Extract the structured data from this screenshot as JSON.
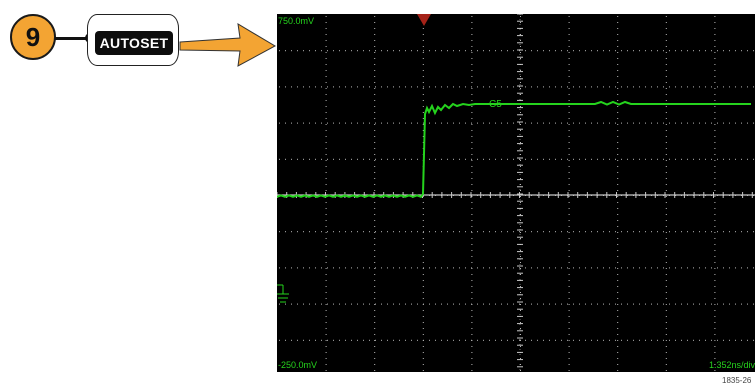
{
  "step": {
    "number": "9"
  },
  "button": {
    "label": "AUTOSET"
  },
  "scope": {
    "top_level": "750.0mV",
    "bottom_level": "-250.0mV",
    "timebase": "1.352ns/div",
    "channel": "C5",
    "trace_color": "#25d31d"
  },
  "figure_id": "1835-26",
  "colors": {
    "badge": "#f3a433",
    "arrow": "#f3a433",
    "trigger_marker": "#a52218"
  }
}
